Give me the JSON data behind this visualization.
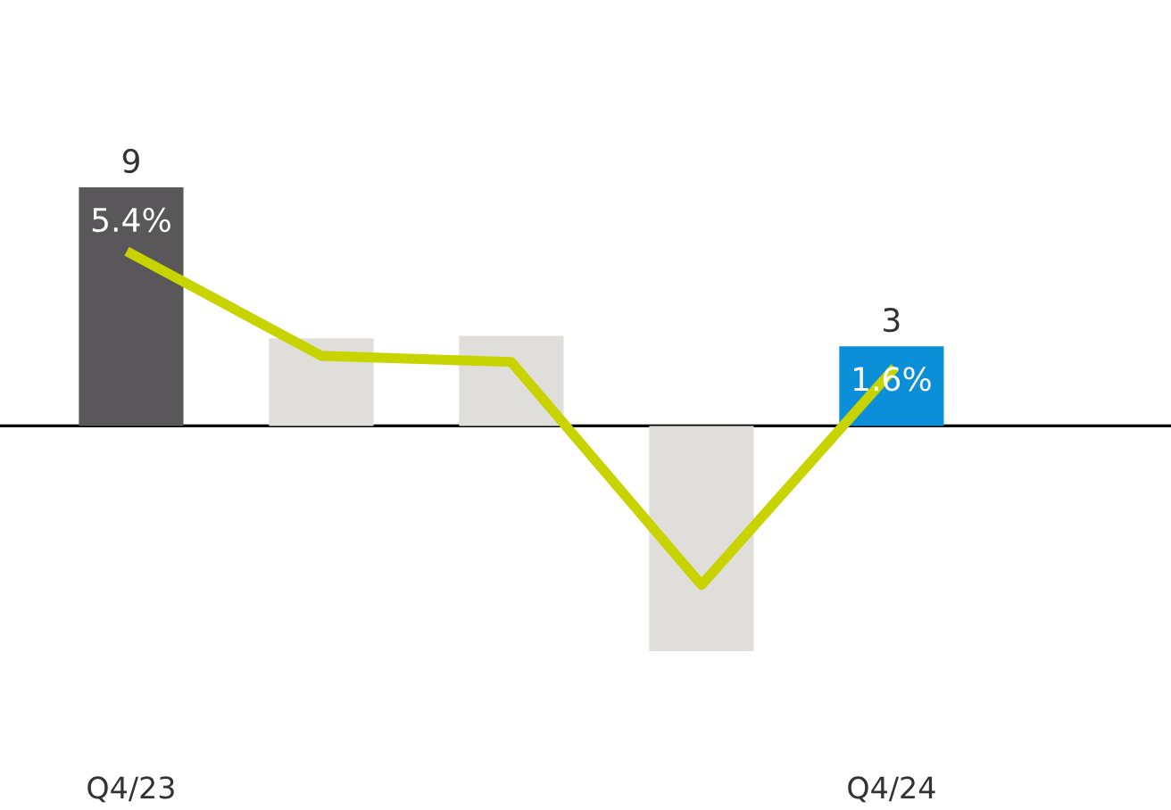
{
  "chart_data": {
    "type": "bar",
    "categories": [
      "Q4/23",
      null,
      null,
      null,
      "Q4/24"
    ],
    "series": [
      {
        "colors": [
          "#5a575a",
          "#e0dedb",
          "#e0dedb",
          "#e0dedb",
          "#0a8fd8"
        ],
        "values": [
          9,
          3.3,
          3.4,
          -8.5,
          3
        ],
        "value_labels": [
          "9",
          null,
          null,
          null,
          "3"
        ]
      },
      {
        "type": "line",
        "axis": "y2",
        "color": "#c8d400",
        "values": [
          5.4,
          2.1,
          1.9,
          -5.3,
          1.6
        ],
        "value_labels": [
          "5.4%",
          null,
          null,
          null,
          "1.6%"
        ]
      }
    ],
    "tick_labels": "x",
    "grid": false,
    "legend": false,
    "marker": "none"
  }
}
